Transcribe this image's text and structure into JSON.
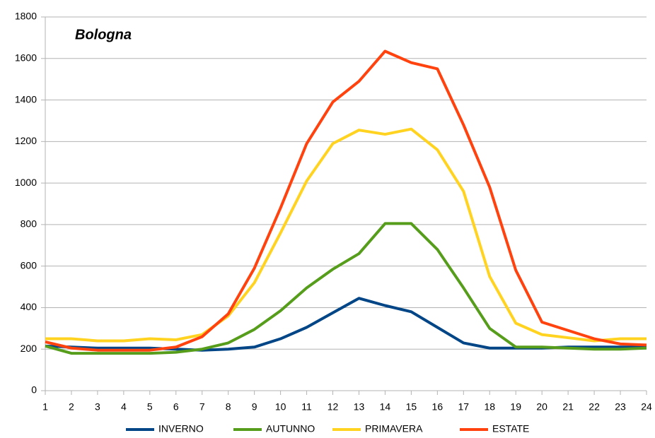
{
  "chart_data": {
    "type": "line",
    "title": "Bologna",
    "x": [
      1,
      2,
      3,
      4,
      5,
      6,
      7,
      8,
      9,
      10,
      11,
      12,
      13,
      14,
      15,
      16,
      17,
      18,
      19,
      20,
      21,
      22,
      23,
      24
    ],
    "series": [
      {
        "name": "INVERNO",
        "color": "#004586",
        "values": [
          215,
          210,
          205,
          205,
          205,
          200,
          195,
          200,
          210,
          250,
          305,
          375,
          445,
          410,
          380,
          305,
          230,
          205,
          205,
          205,
          210,
          210,
          210,
          210
        ]
      },
      {
        "name": "AUTUNNO",
        "color": "#579d1c",
        "values": [
          215,
          180,
          180,
          180,
          180,
          185,
          200,
          230,
          295,
          385,
          495,
          585,
          660,
          805,
          805,
          680,
          495,
          300,
          210,
          210,
          205,
          200,
          200,
          205
        ]
      },
      {
        "name": "PRIMAVERA",
        "color": "#ffd320",
        "values": [
          250,
          250,
          240,
          240,
          250,
          245,
          270,
          360,
          520,
          760,
          1010,
          1190,
          1255,
          1235,
          1260,
          1160,
          960,
          550,
          325,
          270,
          255,
          240,
          250,
          250
        ]
      },
      {
        "name": "ESTATE",
        "color": "#ff420e",
        "values": [
          235,
          205,
          195,
          195,
          195,
          210,
          260,
          370,
          590,
          880,
          1190,
          1390,
          1490,
          1635,
          1580,
          1550,
          1280,
          980,
          580,
          330,
          290,
          250,
          225,
          220
        ]
      }
    ],
    "xlim": [
      1,
      24
    ],
    "xticks": [
      1,
      2,
      3,
      4,
      5,
      6,
      7,
      8,
      9,
      10,
      11,
      12,
      13,
      14,
      15,
      16,
      17,
      18,
      19,
      20,
      21,
      22,
      23,
      24
    ],
    "ylim": [
      0,
      1800
    ],
    "yticks": [
      0,
      200,
      400,
      600,
      800,
      1000,
      1200,
      1400,
      1600,
      1800
    ],
    "grid": true,
    "legend": "bottom"
  }
}
